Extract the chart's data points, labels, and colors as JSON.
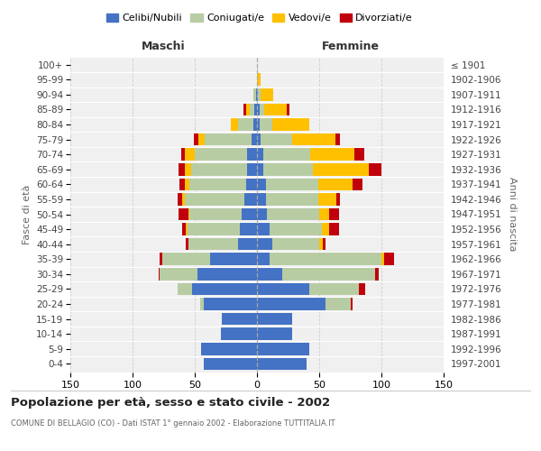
{
  "age_groups": [
    "0-4",
    "5-9",
    "10-14",
    "15-19",
    "20-24",
    "25-29",
    "30-34",
    "35-39",
    "40-44",
    "45-49",
    "50-54",
    "55-59",
    "60-64",
    "65-69",
    "70-74",
    "75-79",
    "80-84",
    "85-89",
    "90-94",
    "95-99",
    "100+"
  ],
  "birth_years": [
    "1997-2001",
    "1992-1996",
    "1987-1991",
    "1982-1986",
    "1977-1981",
    "1972-1976",
    "1967-1971",
    "1962-1966",
    "1957-1961",
    "1952-1956",
    "1947-1951",
    "1942-1946",
    "1937-1941",
    "1932-1936",
    "1927-1931",
    "1922-1926",
    "1917-1921",
    "1912-1916",
    "1907-1911",
    "1902-1906",
    "≤ 1901"
  ],
  "male_celibi": [
    43,
    45,
    29,
    28,
    43,
    52,
    48,
    38,
    15,
    14,
    12,
    10,
    9,
    8,
    8,
    4,
    3,
    2,
    1,
    0,
    0
  ],
  "male_coniugati": [
    0,
    0,
    0,
    0,
    3,
    12,
    30,
    38,
    40,
    42,
    42,
    48,
    45,
    45,
    42,
    38,
    12,
    4,
    2,
    0,
    0
  ],
  "male_vedovi": [
    0,
    0,
    0,
    0,
    0,
    0,
    0,
    0,
    0,
    1,
    1,
    2,
    4,
    5,
    8,
    5,
    6,
    3,
    0,
    0,
    0
  ],
  "male_divorziati": [
    0,
    0,
    0,
    0,
    0,
    0,
    1,
    2,
    2,
    3,
    8,
    4,
    4,
    5,
    3,
    4,
    0,
    2,
    0,
    0,
    0
  ],
  "fem_nubili": [
    40,
    42,
    28,
    28,
    55,
    42,
    20,
    10,
    12,
    10,
    8,
    7,
    7,
    5,
    5,
    3,
    2,
    2,
    1,
    0,
    0
  ],
  "fem_coniugate": [
    0,
    0,
    0,
    0,
    20,
    40,
    75,
    90,
    38,
    42,
    42,
    42,
    42,
    40,
    38,
    25,
    10,
    4,
    2,
    0,
    0
  ],
  "fem_vedove": [
    0,
    0,
    0,
    0,
    0,
    0,
    0,
    2,
    3,
    6,
    8,
    15,
    28,
    45,
    35,
    35,
    30,
    18,
    10,
    3,
    0
  ],
  "fem_divorziate": [
    0,
    0,
    0,
    0,
    2,
    5,
    3,
    8,
    2,
    8,
    8,
    3,
    8,
    10,
    8,
    4,
    0,
    2,
    0,
    0,
    0
  ],
  "colors": {
    "celibi": "#4472c4",
    "coniugati": "#b8cca4",
    "vedovi": "#ffc000",
    "divorziati": "#c0000b"
  },
  "title": "Popolazione per età, sesso e stato civile - 2002",
  "subtitle": "COMUNE DI BELLAGIO (CO) - Dati ISTAT 1° gennaio 2002 - Elaborazione TUTTITALIA.IT",
  "xlabel_left": "Maschi",
  "xlabel_right": "Femmine",
  "ylabel_left": "Fasce di età",
  "ylabel_right": "Anni di nascita",
  "xlim": 150,
  "background_color": "#ffffff",
  "plot_bg": "#f0f0f0",
  "legend_labels": [
    "Celibi/Nubili",
    "Coniugati/e",
    "Vedovi/e",
    "Divorziati/e"
  ]
}
